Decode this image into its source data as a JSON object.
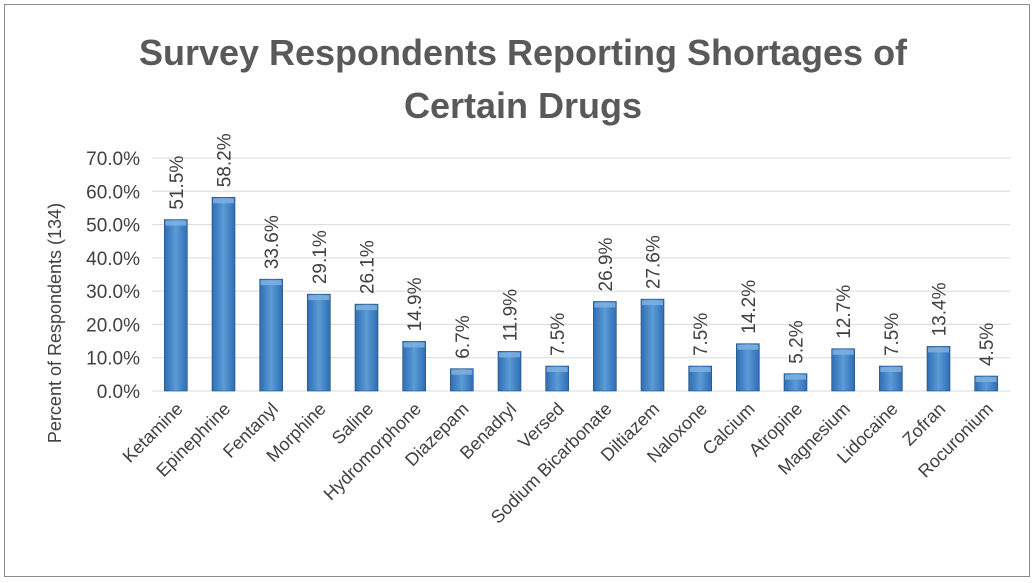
{
  "chart_data": {
    "type": "bar",
    "title": "Survey Respondents Reporting Shortages of Certain Drugs",
    "title_lines": [
      "Survey Respondents Reporting Shortages of",
      "Certain Drugs"
    ],
    "xlabel": "",
    "ylabel": "Percent of Respondents (134)",
    "ylim": [
      0,
      70
    ],
    "yticks": [
      0,
      10,
      20,
      30,
      40,
      50,
      60,
      70
    ],
    "ytick_labels": [
      "0.0%",
      "10.0%",
      "20.0%",
      "30.0%",
      "40.0%",
      "50.0%",
      "60.0%",
      "70.0%"
    ],
    "grid": true,
    "legend": "none",
    "categories": [
      "Ketamine",
      "Epinephrine",
      "Fentanyl",
      "Morphine",
      "Saline",
      "Hydromorphone",
      "Diazepam",
      "Benadryl",
      "Versed",
      "Sodium Bicarbonate",
      "Diltiazem",
      "Naloxone",
      "Calcium",
      "Atropine",
      "Magnesium",
      "Lidocaine",
      "Zofran",
      "Rocuronium"
    ],
    "values": [
      51.5,
      58.2,
      33.6,
      29.1,
      26.1,
      14.9,
      6.7,
      11.9,
      7.5,
      26.9,
      27.6,
      7.5,
      14.2,
      5.2,
      12.7,
      7.5,
      13.4,
      4.5
    ],
    "data_labels": [
      "51.5%",
      "58.2%",
      "33.6%",
      "29.1%",
      "26.1%",
      "14.9%",
      "6.7%",
      "11.9%",
      "7.5%",
      "26.9%",
      "27.6%",
      "7.5%",
      "14.2%",
      "5.2%",
      "12.7%",
      "7.5%",
      "13.4%",
      "4.5%"
    ],
    "colors": {
      "bar_light": "#5b9bd5",
      "bar_dark": "#2e6db4",
      "bar_edge": "#1f4e79",
      "title": "#595959",
      "text": "#404040",
      "grid": "#d9d9d9"
    }
  }
}
